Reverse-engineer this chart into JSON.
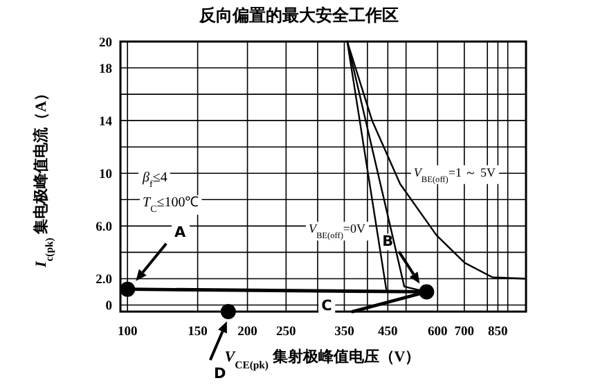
{
  "chart_data": {
    "type": "line",
    "title": "反向偏置的最大安全工作区",
    "xlabel": "*V*$_{CE(pk)}$ 集射极峰值电压（V）",
    "ylabel": "*I*$_{c(pk)}$ 集电极峰值电流（A）",
    "log": "x",
    "xlim": [
      96,
      1000
    ],
    "ylim": [
      -0.5,
      20
    ],
    "xticks": [
      100,
      150,
      200,
      250,
      {
        "value": 300,
        "label": null
      },
      350,
      {
        "value": 400,
        "label": null
      },
      450,
      {
        "value": 500,
        "label": null
      },
      600,
      700,
      {
        "value": 800,
        "label": null
      },
      850,
      {
        "value": 900,
        "label": null
      }
    ],
    "yticks": [
      0,
      {
        "value": 2,
        "label": "2.0"
      },
      {
        "value": 4,
        "label": null
      },
      {
        "value": 6,
        "label": "6.0"
      },
      {
        "value": 8,
        "label": null
      },
      10,
      {
        "value": 12,
        "label": null
      },
      14,
      {
        "value": 16,
        "label": null
      },
      18,
      20
    ],
    "grid": true,
    "line_style": "solid",
    "series": [
      {
        "type": "line",
        "color": "#000000",
        "x": [
          356,
          446
        ],
        "values": [
          20,
          1.2
        ]
      },
      {
        "type": "line",
        "color": "#000000",
        "x": [
          356,
          495,
          563
        ],
        "values": [
          20,
          1.4,
          1.0
        ]
      },
      {
        "type": "line",
        "color": "#000000",
        "x": [
          356,
          411,
          483,
          596,
          702,
          824,
          1000
        ],
        "values": [
          20,
          14,
          9.2,
          5.3,
          3.2,
          2.1,
          2
        ]
      },
      {
        "type": "line",
        "color": "#000000",
        "x": [
          100,
          563,
          367
        ],
        "values": [
          1.2,
          1.0,
          -0.5
        ]
      },
      {
        "type": "scatter",
        "marker": "circle",
        "color": "#000000",
        "x": [
          100,
          563,
          179
        ],
        "values": [
          1.2,
          1.0,
          -0.5
        ]
      }
    ],
    "annotations": [
      "A",
      "B",
      "C",
      "D",
      {
        "text": "*V*$_{BE(off)}$=0V",
        "x": 425,
        "y": 6
      },
      {
        "text": "*V*$_{BE(off)}$=1 ～ 5V",
        "x": 475,
        "y": 10.5
      },
      "*β*$_{f}$≤4",
      "*T*$_{C}$≤100℃"
    ]
  }
}
